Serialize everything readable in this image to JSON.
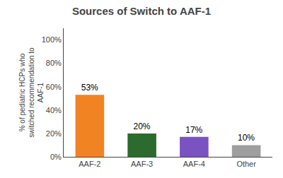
{
  "chart_data": {
    "type": "bar",
    "title": "Sources of Switch to AAF-1",
    "categories": [
      "AAF-2",
      "AAF-3",
      "AAF-4",
      "Other"
    ],
    "values": [
      53,
      20,
      17,
      10
    ],
    "value_labels": [
      "53%",
      "20%",
      "17%",
      "10%"
    ],
    "data_labels": true,
    "colors": [
      "#F28322",
      "#2D6A2D",
      "#7B52C1",
      "#9E9E9E"
    ],
    "ylabel": "% of pediatric HCPs who\nswitched recommendation to\nAAF-1",
    "ylim": [
      0,
      110
    ],
    "yticks": [
      {
        "value": 0,
        "label": "0%"
      },
      {
        "value": 20,
        "label": "20%"
      },
      {
        "value": 40,
        "label": "40%"
      },
      {
        "value": 60,
        "label": "60%"
      },
      {
        "value": 80,
        "label": "80%"
      },
      {
        "value": 100,
        "label": "100%"
      }
    ],
    "grid": false
  }
}
